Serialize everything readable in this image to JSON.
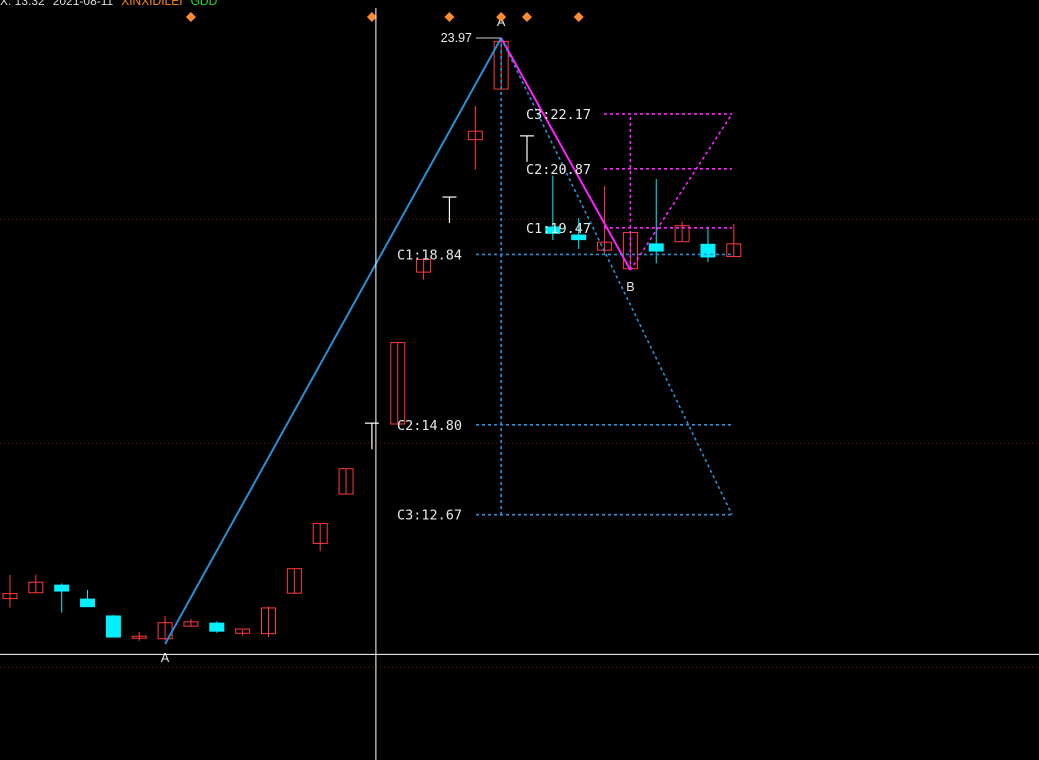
{
  "header": {
    "time": "X: 13:32",
    "date": "2021-08-11",
    "name": "XINXIDILEI",
    "tag": "GDD",
    "colors": {
      "time": "#dddddd",
      "date": "#dddddd",
      "name": "#ff8c1a",
      "tag": "#22dd22"
    }
  },
  "chart_data": {
    "type": "candlestick",
    "colors": {
      "up": "#ff3b3b",
      "down": "#00f0ff",
      "cross": "#ffffff",
      "blue_lines": "#2a8fd8",
      "magenta_lines": "#ff22ff",
      "markers": "#ff8c33"
    },
    "price_range": [
      10.0,
      25.0
    ],
    "candles": [
      {
        "o": 10.68,
        "h": 11.24,
        "l": 10.47,
        "c": 10.8
      },
      {
        "o": 10.82,
        "h": 11.25,
        "l": 10.82,
        "c": 11.07
      },
      {
        "o": 11.0,
        "h": 11.04,
        "l": 10.35,
        "c": 10.86
      },
      {
        "o": 10.67,
        "h": 10.89,
        "l": 10.53,
        "c": 10.49
      },
      {
        "o": 10.27,
        "h": 10.29,
        "l": 9.78,
        "c": 9.77
      },
      {
        "o": 9.75,
        "h": 9.89,
        "l": 9.68,
        "c": 9.79
      },
      {
        "o": 9.73,
        "h": 10.27,
        "l": 9.7,
        "c": 10.11
      },
      {
        "o": 10.03,
        "h": 10.2,
        "l": 10.02,
        "c": 10.13
      },
      {
        "o": 10.1,
        "h": 10.14,
        "l": 9.87,
        "c": 9.91
      },
      {
        "o": 9.86,
        "h": 9.94,
        "l": 9.8,
        "c": 9.96
      },
      {
        "o": 9.85,
        "h": 10.49,
        "l": 9.77,
        "c": 10.46
      },
      {
        "o": 10.81,
        "h": 11.39,
        "l": 10.79,
        "c": 11.39
      },
      {
        "o": 11.99,
        "h": 12.46,
        "l": 11.81,
        "c": 12.46
      },
      {
        "o": 13.16,
        "h": 13.76,
        "l": 13.16,
        "c": 13.76
      },
      {
        "o": 14.86,
        "h": 14.84,
        "l": 14.86,
        "c": 14.84
      },
      {
        "o": 14.82,
        "h": 16.75,
        "l": 14.82,
        "c": 16.75
      },
      {
        "o": 18.42,
        "h": 18.72,
        "l": 18.24,
        "c": 18.72
      },
      {
        "o": 20.2,
        "h": 20.2,
        "l": 20.2,
        "c": 20.2
      },
      {
        "o": 21.56,
        "h": 22.36,
        "l": 20.85,
        "c": 21.76
      },
      {
        "o": 22.76,
        "h": 23.97,
        "l": 22.76,
        "c": 23.89
      },
      {
        "o": 21.65,
        "h": 21.65,
        "l": 21.65,
        "c": 21.65
      },
      {
        "o": 19.49,
        "h": 20.71,
        "l": 19.18,
        "c": 19.34
      },
      {
        "o": 19.3,
        "h": 19.7,
        "l": 18.97,
        "c": 19.19
      },
      {
        "o": 18.94,
        "h": 20.46,
        "l": 18.85,
        "c": 19.13
      },
      {
        "o": 18.5,
        "h": 19.36,
        "l": 18.47,
        "c": 19.36
      },
      {
        "o": 19.09,
        "h": 20.63,
        "l": 18.63,
        "c": 18.92
      },
      {
        "o": 19.14,
        "h": 19.62,
        "l": 19.14,
        "c": 19.52
      },
      {
        "o": 19.08,
        "h": 19.5,
        "l": 18.66,
        "c": 18.78
      },
      {
        "o": 18.79,
        "h": 19.56,
        "l": 18.79,
        "c": 19.09
      }
    ],
    "points": {
      "A": {
        "label": "A",
        "index": 6,
        "price": 9.7
      },
      "peak": {
        "label": "A",
        "index": 19,
        "price": 23.97,
        "value_label": "23.97"
      },
      "B": {
        "label": "B",
        "index": 24,
        "price": 18.47
      }
    },
    "levels_down": [
      {
        "label": "C1:18.84",
        "value": 18.84
      },
      {
        "label": "C2:14.80",
        "value": 14.8
      },
      {
        "label": "C3:12.67",
        "value": 12.67
      }
    ],
    "levels_up": [
      {
        "label": "C1:19.47",
        "value": 19.47
      },
      {
        "label": "C2:20.87",
        "value": 20.87
      },
      {
        "label": "C3:22.17",
        "value": 22.17
      }
    ],
    "markers": [
      {
        "shape": "diamond",
        "index": 7,
        "position": "top"
      },
      {
        "shape": "diamond",
        "index": 14,
        "position": "top"
      },
      {
        "shape": "diamond",
        "index": 17,
        "position": "top"
      },
      {
        "shape": "diamond",
        "index": 19,
        "position": "top"
      },
      {
        "shape": "diamond",
        "index": 20,
        "position": "top"
      },
      {
        "shape": "diamond",
        "index": 22,
        "position": "top"
      }
    ],
    "crosshair": {
      "index": 14,
      "price": 9.5
    },
    "grid": "dotted"
  }
}
